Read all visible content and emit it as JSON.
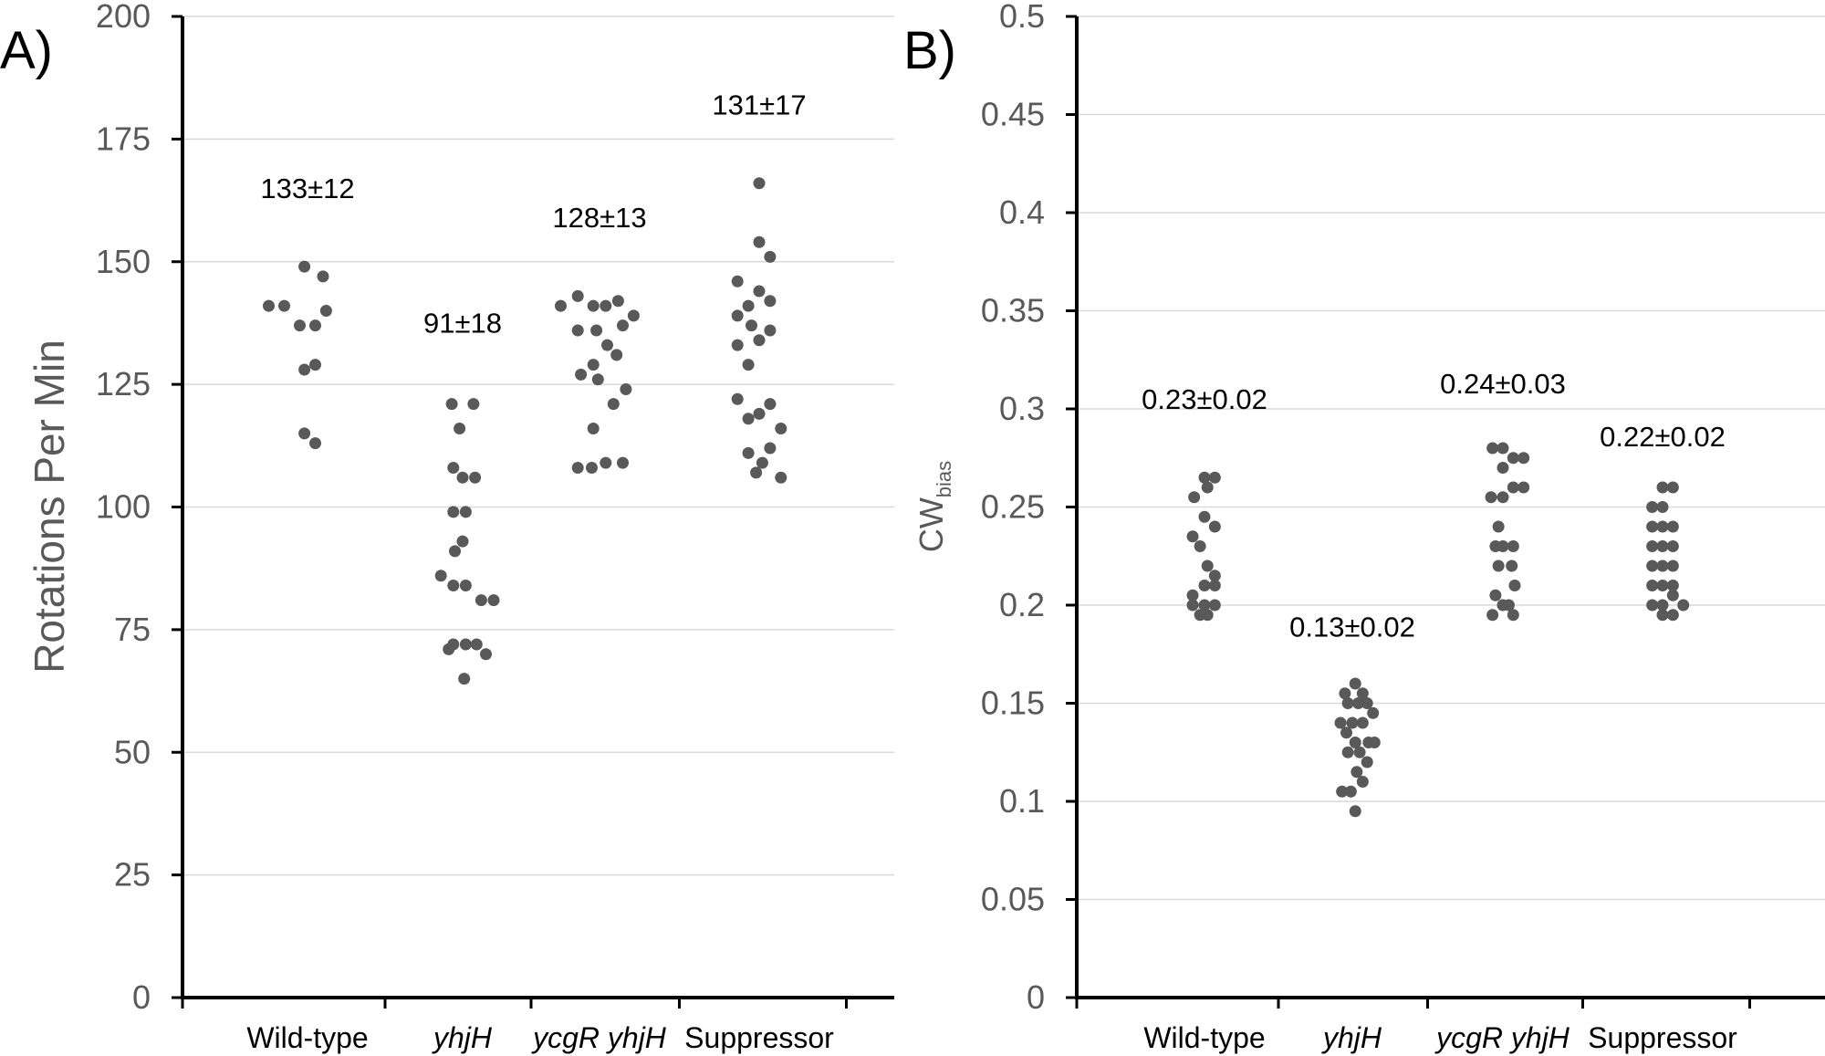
{
  "chart_data": [
    {
      "type": "scatter",
      "panel_label": "A)",
      "title": "",
      "xlabel": "",
      "ylabel": "Rotations Per Min",
      "ylabel_sub": "",
      "ylim": [
        0,
        200
      ],
      "yticks": [
        0,
        25,
        50,
        75,
        100,
        125,
        150,
        175,
        200
      ],
      "ytick_labels": [
        "0",
        "25",
        "50",
        "75",
        "100",
        "125",
        "150",
        "175",
        "200"
      ],
      "grid": true,
      "categories": [
        {
          "label": "Wild-type",
          "italic": false
        },
        {
          "label": "yhjH",
          "italic": true
        },
        {
          "label": "ycgR yhjH",
          "italic": true,
          "mixed": [
            {
              "t": "ycgR",
              "i": true
            },
            {
              "t": " yhjH",
              "i": true
            }
          ]
        },
        {
          "label": "Suppressor",
          "italic": false
        }
      ],
      "annotations": [
        {
          "text": "133±12",
          "y": 163
        },
        {
          "text": "91±18",
          "y": 135.5
        },
        {
          "text": "128±13",
          "y": 157
        },
        {
          "text": "131±17",
          "y": 180
        }
      ],
      "series": [
        {
          "name": "Wild-type",
          "points": [
            [
              -0.25,
              141
            ],
            [
              -0.15,
              141
            ],
            [
              -0.02,
              149
            ],
            [
              0.1,
              147
            ],
            [
              -0.05,
              137
            ],
            [
              0.05,
              137
            ],
            [
              0.12,
              140
            ],
            [
              -0.02,
              128
            ],
            [
              0.05,
              129
            ],
            [
              -0.02,
              115
            ],
            [
              0.05,
              113
            ]
          ]
        },
        {
          "name": "yhjH",
          "points": [
            [
              -0.07,
              121
            ],
            [
              0.07,
              121
            ],
            [
              -0.02,
              116
            ],
            [
              -0.06,
              108
            ],
            [
              0.0,
              106
            ],
            [
              0.08,
              106
            ],
            [
              -0.06,
              99
            ],
            [
              0.02,
              99
            ],
            [
              0.0,
              93
            ],
            [
              -0.05,
              91
            ],
            [
              -0.14,
              86
            ],
            [
              -0.06,
              84
            ],
            [
              0.02,
              84
            ],
            [
              0.12,
              81
            ],
            [
              0.2,
              81
            ],
            [
              -0.06,
              72
            ],
            [
              0.02,
              72
            ],
            [
              0.09,
              72
            ],
            [
              -0.09,
              71
            ],
            [
              0.15,
              70
            ],
            [
              0.01,
              65
            ]
          ]
        },
        {
          "name": "ycgR yhjH",
          "points": [
            [
              -0.25,
              141
            ],
            [
              -0.14,
              143
            ],
            [
              -0.04,
              141
            ],
            [
              0.04,
              141
            ],
            [
              0.12,
              142
            ],
            [
              0.22,
              139
            ],
            [
              -0.14,
              136
            ],
            [
              -0.02,
              136
            ],
            [
              0.15,
              137
            ],
            [
              0.05,
              133
            ],
            [
              0.11,
              131
            ],
            [
              -0.04,
              129
            ],
            [
              -0.12,
              127
            ],
            [
              -0.01,
              126
            ],
            [
              0.17,
              124
            ],
            [
              0.09,
              121
            ],
            [
              -0.04,
              116
            ],
            [
              -0.14,
              108
            ],
            [
              -0.05,
              108
            ],
            [
              0.04,
              109
            ],
            [
              0.15,
              109
            ]
          ]
        },
        {
          "name": "Suppressor",
          "points": [
            [
              -0.14,
              146
            ],
            [
              -0.14,
              139
            ],
            [
              -0.07,
              141
            ],
            [
              0.0,
              166
            ],
            [
              0.0,
              154
            ],
            [
              0.07,
              151
            ],
            [
              0.0,
              144
            ],
            [
              0.07,
              142
            ],
            [
              -0.05,
              137
            ],
            [
              0.07,
              136
            ],
            [
              0.0,
              134
            ],
            [
              -0.14,
              133
            ],
            [
              -0.07,
              129
            ],
            [
              -0.14,
              122
            ],
            [
              0.07,
              121
            ],
            [
              0.0,
              119
            ],
            [
              -0.07,
              118
            ],
            [
              0.14,
              116
            ],
            [
              0.07,
              112
            ],
            [
              -0.07,
              111
            ],
            [
              0.02,
              109
            ],
            [
              -0.02,
              107
            ],
            [
              0.14,
              106
            ]
          ]
        }
      ]
    },
    {
      "type": "scatter",
      "panel_label": "B)",
      "title": "",
      "xlabel": "",
      "ylabel": "CW",
      "ylabel_sub": "bias",
      "ylim": [
        0,
        0.5
      ],
      "yticks": [
        0,
        0.05,
        0.1,
        0.15,
        0.2,
        0.25,
        0.3,
        0.35,
        0.4,
        0.45,
        0.5
      ],
      "ytick_labels": [
        "0",
        "0.05",
        "0.1",
        "0.15",
        "0.2",
        "0.25",
        "0.3",
        "0.35",
        "0.4",
        "0.45",
        "0.5"
      ],
      "grid": true,
      "categories": [
        {
          "label": "Wild-type",
          "italic": false
        },
        {
          "label": "yhjH",
          "italic": true
        },
        {
          "label": "ycgR yhjH",
          "italic": true,
          "mixed": [
            {
              "t": "ycgR",
              "i": true
            },
            {
              "t": " yhjH",
              "i": true
            }
          ]
        },
        {
          "label": "Suppressor",
          "italic": false
        }
      ],
      "annotations": [
        {
          "text": "0.23±0.02",
          "y": 0.3
        },
        {
          "text": "0.13±0.02",
          "y": 0.184
        },
        {
          "text": "0.24±0.03",
          "y": 0.308
        },
        {
          "text": "0.22±0.02",
          "y": 0.281
        }
      ],
      "series": [
        {
          "name": "Wild-type",
          "points": [
            [
              0.0,
              0.265
            ],
            [
              0.07,
              0.265
            ],
            [
              -0.07,
              0.255
            ],
            [
              0.02,
              0.26
            ],
            [
              0.0,
              0.245
            ],
            [
              -0.08,
              0.235
            ],
            [
              0.07,
              0.24
            ],
            [
              -0.03,
              0.23
            ],
            [
              0.02,
              0.22
            ],
            [
              0.07,
              0.215
            ],
            [
              -0.08,
              0.205
            ],
            [
              0.0,
              0.21
            ],
            [
              0.07,
              0.21
            ],
            [
              -0.08,
              0.2
            ],
            [
              0.0,
              0.2
            ],
            [
              0.07,
              0.2
            ],
            [
              -0.03,
              0.195
            ],
            [
              0.02,
              0.195
            ]
          ]
        },
        {
          "name": "yhjH",
          "points": [
            [
              0.02,
              0.16
            ],
            [
              -0.05,
              0.155
            ],
            [
              0.07,
              0.155
            ],
            [
              -0.03,
              0.15
            ],
            [
              0.04,
              0.15
            ],
            [
              0.1,
              0.15
            ],
            [
              0.14,
              0.145
            ],
            [
              -0.08,
              0.14
            ],
            [
              0.0,
              0.14
            ],
            [
              0.07,
              0.14
            ],
            [
              -0.04,
              0.135
            ],
            [
              0.02,
              0.13
            ],
            [
              0.11,
              0.13
            ],
            [
              0.15,
              0.13
            ],
            [
              -0.03,
              0.125
            ],
            [
              0.05,
              0.125
            ],
            [
              0.1,
              0.12
            ],
            [
              0.03,
              0.115
            ],
            [
              0.07,
              0.11
            ],
            [
              -0.07,
              0.105
            ],
            [
              -0.01,
              0.105
            ],
            [
              0.02,
              0.095
            ]
          ]
        },
        {
          "name": "ycgR yhjH",
          "points": [
            [
              -0.07,
              0.28
            ],
            [
              0.0,
              0.28
            ],
            [
              0.07,
              0.275
            ],
            [
              0.14,
              0.275
            ],
            [
              0.0,
              0.27
            ],
            [
              -0.08,
              0.255
            ],
            [
              0.0,
              0.255
            ],
            [
              0.07,
              0.26
            ],
            [
              0.14,
              0.26
            ],
            [
              -0.03,
              0.24
            ],
            [
              0.07,
              0.23
            ],
            [
              -0.05,
              0.23
            ],
            [
              0.0,
              0.23
            ],
            [
              0.08,
              0.21
            ],
            [
              -0.03,
              0.22
            ],
            [
              0.06,
              0.22
            ],
            [
              -0.05,
              0.205
            ],
            [
              0.04,
              0.2
            ],
            [
              0.0,
              0.2
            ],
            [
              -0.07,
              0.195
            ],
            [
              0.07,
              0.195
            ]
          ]
        },
        {
          "name": "Suppressor",
          "points": [
            [
              0.0,
              0.26
            ],
            [
              0.07,
              0.26
            ],
            [
              -0.07,
              0.25
            ],
            [
              0.0,
              0.25
            ],
            [
              0.07,
              0.24
            ],
            [
              -0.07,
              0.24
            ],
            [
              0.0,
              0.24
            ],
            [
              -0.07,
              0.23
            ],
            [
              0.0,
              0.23
            ],
            [
              0.07,
              0.23
            ],
            [
              0.0,
              0.22
            ],
            [
              -0.07,
              0.22
            ],
            [
              0.07,
              0.22
            ],
            [
              -0.07,
              0.21
            ],
            [
              0.0,
              0.21
            ],
            [
              0.07,
              0.21
            ],
            [
              -0.07,
              0.2
            ],
            [
              0.0,
              0.2
            ],
            [
              0.07,
              0.205
            ],
            [
              0.14,
              0.2
            ],
            [
              0.0,
              0.195
            ],
            [
              0.07,
              0.195
            ]
          ]
        }
      ]
    }
  ]
}
